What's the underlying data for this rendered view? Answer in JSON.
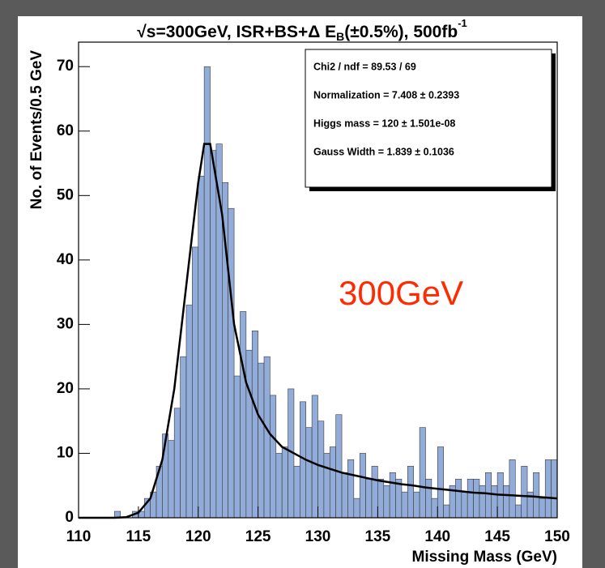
{
  "chart_data": {
    "type": "histogram",
    "title": [
      "√s=300GeV, ISR+BS+Δ E",
      "B",
      "(±0.5%), 500fb",
      "-1"
    ],
    "x_label": "Missing Mass (GeV)",
    "y_label": "No. of Events/0.5 GeV",
    "annotation": "300GeV",
    "stats": [
      "Chi2 / ndf = 89.53 / 69",
      "Normalization = 7.408  ± 0.2393",
      "Higgs mass =   120 ± 1.501e-08",
      "Gauss Width = 1.839 ± 0.1036"
    ],
    "color": "#92acd9",
    "bins": [
      110,
      110.5,
      111,
      111.5,
      112,
      112.5,
      113,
      113.5,
      114,
      114.5,
      115,
      115.5,
      116,
      116.5,
      117,
      117.5,
      118,
      118.5,
      119,
      119.5,
      120,
      120.5,
      121,
      121.5,
      122,
      122.5,
      123,
      123.5,
      124,
      124.5,
      125,
      125.5,
      126,
      126.5,
      127,
      127.5,
      128,
      128.5,
      129,
      129.5,
      130,
      130.5,
      131,
      131.5,
      132,
      132.5,
      133,
      133.5,
      134,
      134.5,
      135,
      135.5,
      136,
      136.5,
      137,
      137.5,
      138,
      138.5,
      139,
      139.5,
      140,
      140.5,
      141,
      141.5,
      142,
      142.5,
      143,
      143.5,
      144,
      144.5,
      145,
      145.5,
      146,
      146.5,
      147,
      147.5,
      148,
      148.5,
      149,
      149.5,
      150
    ],
    "values": [
      0,
      0,
      0,
      0,
      0,
      0,
      1,
      0,
      0,
      1,
      1,
      3,
      4,
      8,
      13,
      12,
      17,
      25,
      33,
      42,
      53,
      70,
      57,
      58,
      52,
      48,
      22,
      32,
      26,
      29,
      24,
      25,
      19,
      10,
      11,
      20,
      8,
      18,
      14,
      19,
      15,
      10,
      11,
      16,
      7,
      9,
      3,
      10,
      6,
      8,
      6,
      5,
      7,
      6,
      4,
      8,
      4,
      14,
      6,
      3,
      11,
      2,
      5,
      6,
      4,
      6,
      6,
      5,
      7,
      5,
      7,
      5,
      9,
      2,
      8,
      4,
      7,
      3,
      9,
      9
    ],
    "fit": {
      "color": "#000000",
      "x": [
        110,
        111,
        112,
        113,
        114,
        115,
        116,
        117,
        118,
        119,
        120,
        120.5,
        121,
        122,
        123,
        124,
        125,
        126,
        127,
        128,
        129,
        130,
        131,
        132,
        133,
        134,
        135,
        136,
        137,
        138,
        139,
        140,
        141,
        142,
        143,
        144,
        145,
        146,
        147,
        148,
        149,
        150
      ],
      "values": [
        0,
        0,
        0,
        0,
        0.1,
        0.8,
        3,
        9,
        20,
        36,
        52,
        58,
        58,
        47,
        30,
        21,
        16,
        13,
        11,
        10,
        9,
        8.2,
        7.6,
        7,
        6.6,
        6.2,
        5.8,
        5.5,
        5.2,
        5,
        4.7,
        4.5,
        4.3,
        4.1,
        3.9,
        3.8,
        3.6,
        3.5,
        3.4,
        3.3,
        3.15,
        3
      ]
    },
    "xlim": [
      110,
      150
    ],
    "ylim": [
      0,
      73.8
    ],
    "xticks": [
      110,
      115,
      120,
      125,
      130,
      135,
      140,
      145,
      150
    ],
    "yticks": [
      0,
      10,
      20,
      30,
      40,
      50,
      60,
      70
    ],
    "grid": false
  }
}
